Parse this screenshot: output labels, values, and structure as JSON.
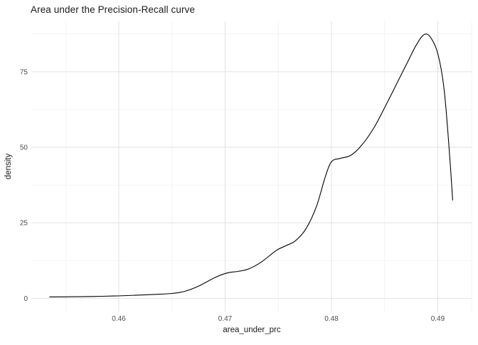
{
  "chart_data": {
    "type": "line",
    "subtype": "density-curve",
    "title": "Area under the Precision-Recall curve",
    "xlabel": "area_under_prc",
    "ylabel": "density",
    "x_tick_values": [
      0.46,
      0.47,
      0.48,
      0.49
    ],
    "x_tick_labels": [
      "0.46",
      "0.47",
      "0.48",
      "0.49"
    ],
    "y_tick_values": [
      0,
      25,
      50,
      75
    ],
    "y_tick_labels": [
      "0",
      "25",
      "50",
      "75"
    ],
    "x_minor_gridlines": [
      0.455,
      0.465,
      0.475,
      0.485,
      0.4932
    ],
    "y_minor_gridlines": [
      12.5,
      37.5,
      62.5,
      87.5
    ],
    "xlim": [
      0.4518,
      0.4932
    ],
    "ylim": [
      -4.4,
      91.8
    ],
    "grid": true,
    "legend": "none",
    "line_color": "#000000",
    "major_grid_color": "#e2e2e2",
    "minor_grid_color": "#ededed",
    "background_color": "#ffffff",
    "series": [
      {
        "name": "density",
        "x": [
          0.4535,
          0.4555,
          0.4575,
          0.4595,
          0.4615,
          0.4635,
          0.465,
          0.4662,
          0.4675,
          0.469,
          0.4702,
          0.4712,
          0.4722,
          0.4734,
          0.4748,
          0.4757,
          0.4766,
          0.4776,
          0.4786,
          0.4794,
          0.48,
          0.4808,
          0.4818,
          0.4828,
          0.484,
          0.4852,
          0.4862,
          0.4872,
          0.488,
          0.4887,
          0.4893,
          0.49,
          0.4906,
          0.4911,
          0.4914
        ],
        "y": [
          0.45,
          0.5,
          0.6,
          0.75,
          1.0,
          1.3,
          1.6,
          2.3,
          4.0,
          6.8,
          8.4,
          8.9,
          9.7,
          12.0,
          15.8,
          17.4,
          19.0,
          23.0,
          30.5,
          40.0,
          45.2,
          46.3,
          47.3,
          50.5,
          56.5,
          64.5,
          71.5,
          78.5,
          84.0,
          87.3,
          86.5,
          81.0,
          69.0,
          48.0,
          32.5
        ]
      }
    ],
    "peak": {
      "x": 0.4887,
      "y": 87.3
    },
    "curve_start": {
      "x": 0.4535,
      "y": 0.45
    },
    "curve_end": {
      "x": 0.4914,
      "y": 32.5
    }
  }
}
